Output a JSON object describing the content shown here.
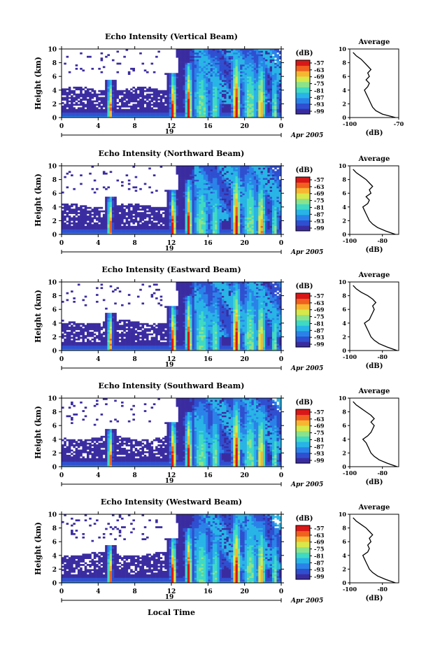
{
  "figure": {
    "xlabel": "Local Time",
    "date_label": "Apr 2005",
    "day_label": "19",
    "colorbar_unit": "(dB)",
    "colorbar_ticks": [
      "-57",
      "-63",
      "-69",
      "-75",
      "-81",
      "-87",
      "-93",
      "-99"
    ],
    "colormap": [
      "#3a2ca0",
      "#2f4fd0",
      "#2a82e8",
      "#28b4e6",
      "#3fd9c4",
      "#8ae38a",
      "#d8e84a",
      "#f7b631",
      "#f06020",
      "#d81818"
    ]
  },
  "chart_data": [
    {
      "type": "heatmap",
      "title": "Echo Intensity (Vertical Beam)",
      "ylabel": "Height (km)",
      "xlim": [
        0,
        24
      ],
      "ylim": [
        0,
        10
      ],
      "xticks": [
        "0",
        "4",
        "8",
        "12",
        "16",
        "20",
        "0"
      ],
      "yticks": [
        "0",
        "2",
        "4",
        "6",
        "8",
        "10"
      ],
      "profile": {
        "title": "Average",
        "xlabel": "(dB)",
        "xticks": [
          "-100",
          "-70"
        ],
        "xlim": [
          -100,
          -70
        ],
        "heights": [
          0,
          0.5,
          1,
          1.5,
          2,
          2.5,
          3,
          3.5,
          4,
          4.5,
          5,
          5.5,
          6,
          6.5,
          7,
          7.5,
          8,
          8.5,
          9,
          9.5
        ],
        "values": [
          -72,
          -80,
          -84,
          -86,
          -87,
          -88,
          -89,
          -90,
          -91,
          -89,
          -88,
          -90,
          -88,
          -89,
          -87,
          -89,
          -91,
          -93,
          -96,
          -98
        ]
      }
    },
    {
      "type": "heatmap",
      "title": "Echo Intensity (Northward Beam)",
      "ylabel": "Height (km)",
      "xlim": [
        0,
        24
      ],
      "ylim": [
        0,
        10
      ],
      "xticks": [
        "0",
        "4",
        "8",
        "12",
        "16",
        "20",
        "0"
      ],
      "yticks": [
        "0",
        "2",
        "4",
        "6",
        "8",
        "10"
      ],
      "profile": {
        "title": "Average",
        "xlabel": "(dB)",
        "xticks": [
          "-100",
          "-80"
        ],
        "xlim": [
          -100,
          -70
        ],
        "heights": [
          0,
          0.5,
          1,
          1.5,
          2,
          2.5,
          3,
          3.5,
          4,
          4.5,
          5,
          5.5,
          6,
          6.5,
          7,
          7.5,
          8,
          8.5,
          9,
          9.5
        ],
        "values": [
          -72,
          -78,
          -83,
          -86,
          -88,
          -89,
          -90,
          -91,
          -92,
          -89,
          -88,
          -90,
          -87,
          -88,
          -86,
          -88,
          -90,
          -93,
          -96,
          -98
        ]
      }
    },
    {
      "type": "heatmap",
      "title": "Echo Intensity (Eastward Beam)",
      "ylabel": "Height (km)",
      "xlim": [
        0,
        24
      ],
      "ylim": [
        0,
        10
      ],
      "xticks": [
        "0",
        "4",
        "8",
        "12",
        "16",
        "20",
        "0"
      ],
      "yticks": [
        "0",
        "2",
        "4",
        "6",
        "8",
        "10"
      ],
      "profile": {
        "title": "Average",
        "xlabel": "(dB)",
        "xticks": [
          "-100",
          "-80"
        ],
        "xlim": [
          -100,
          -70
        ],
        "heights": [
          0,
          0.5,
          1,
          1.5,
          2,
          2.5,
          3,
          3.5,
          4,
          4.5,
          5,
          5.5,
          6,
          6.5,
          7,
          7.5,
          8,
          8.5,
          9,
          9.5
        ],
        "values": [
          -71,
          -77,
          -82,
          -85,
          -87,
          -88,
          -89,
          -90,
          -91,
          -88,
          -87,
          -86,
          -85,
          -86,
          -84,
          -86,
          -89,
          -93,
          -96,
          -98
        ]
      }
    },
    {
      "type": "heatmap",
      "title": "Echo Intensity (Southward Beam)",
      "ylabel": "Height (km)",
      "xlim": [
        0,
        24
      ],
      "ylim": [
        0,
        10
      ],
      "xticks": [
        "0",
        "4",
        "8",
        "12",
        "16",
        "20",
        "0"
      ],
      "yticks": [
        "0",
        "2",
        "4",
        "6",
        "8",
        "10"
      ],
      "profile": {
        "title": "Average",
        "xlabel": "(dB)",
        "xticks": [
          "-100",
          "-80"
        ],
        "xlim": [
          -100,
          -70
        ],
        "heights": [
          0,
          0.5,
          1,
          1.5,
          2,
          2.5,
          3,
          3.5,
          4,
          4.5,
          5,
          5.5,
          6,
          6.5,
          7,
          7.5,
          8,
          8.5,
          9,
          9.5
        ],
        "values": [
          -71,
          -77,
          -82,
          -85,
          -87,
          -88,
          -89,
          -90,
          -92,
          -89,
          -87,
          -86,
          -85,
          -87,
          -85,
          -87,
          -90,
          -93,
          -96,
          -98
        ]
      }
    },
    {
      "type": "heatmap",
      "title": "Echo Intensity (Westward Beam)",
      "ylabel": "Height (km)",
      "xlim": [
        0,
        24
      ],
      "ylim": [
        0,
        10
      ],
      "xticks": [
        "0",
        "4",
        "8",
        "12",
        "16",
        "20",
        "0"
      ],
      "yticks": [
        "0",
        "2",
        "4",
        "6",
        "8",
        "10"
      ],
      "profile": {
        "title": "Average",
        "xlabel": "(dB)",
        "xticks": [
          "-100",
          "-80"
        ],
        "xlim": [
          -100,
          -70
        ],
        "heights": [
          0,
          0.5,
          1,
          1.5,
          2,
          2.5,
          3,
          3.5,
          4,
          4.5,
          5,
          5.5,
          6,
          6.5,
          7,
          7.5,
          8,
          8.5,
          9,
          9.5
        ],
        "values": [
          -72,
          -78,
          -83,
          -86,
          -88,
          -89,
          -90,
          -91,
          -92,
          -89,
          -88,
          -89,
          -87,
          -88,
          -86,
          -88,
          -90,
          -93,
          -96,
          -98
        ]
      }
    }
  ]
}
